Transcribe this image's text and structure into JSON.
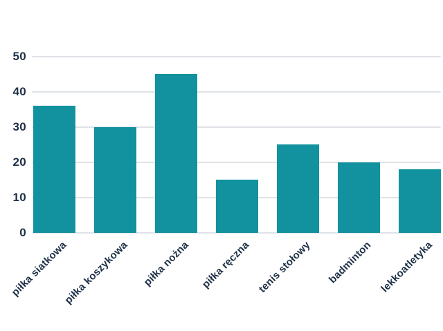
{
  "chart_data": {
    "type": "bar",
    "categories": [
      "piłka siatkowa",
      "piłka koszykowa",
      "piłka nożna",
      "piłka ręczna",
      "tenis stołowy",
      "badminton",
      "lekkoatletyka"
    ],
    "values": [
      36,
      30,
      45,
      15,
      25,
      20,
      18
    ],
    "title": "",
    "xlabel": "",
    "ylabel": "",
    "ylim": [
      0,
      50
    ],
    "yticks": [
      0,
      10,
      20,
      30,
      40,
      50
    ],
    "grid": true,
    "legend": false,
    "x_label_rotation_deg": -45,
    "colors": {
      "bar": "#12929E",
      "axis_text": "#1E3047",
      "gridline": "#DFE3E7",
      "background": "#FFFFFF"
    }
  }
}
